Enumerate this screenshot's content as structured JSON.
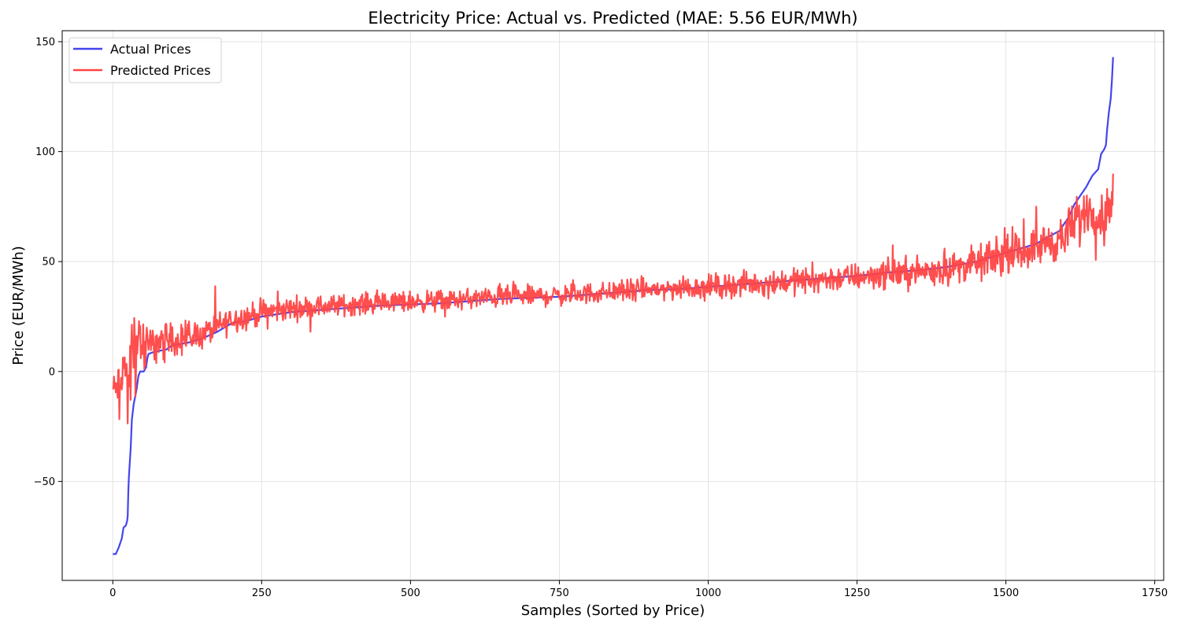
{
  "chart_data": {
    "type": "line",
    "title": "Electricity Price: Actual vs. Predicted (MAE: 5.56 EUR/MWh)",
    "xlabel": "Samples (Sorted by Price)",
    "ylabel": "Price (EUR/MWh)",
    "xlim": [
      -85,
      1765
    ],
    "ylim": [
      -95,
      155
    ],
    "xticks": [
      0,
      250,
      500,
      750,
      1000,
      1250,
      1500,
      1750
    ],
    "yticks": [
      -50,
      0,
      50,
      100,
      150
    ],
    "grid": true,
    "legend_position": "top-left",
    "series": [
      {
        "name": "Actual Prices",
        "color": "#4444ee",
        "shape": "sorted actual price curve",
        "points": [
          [
            0,
            -83
          ],
          [
            5,
            -83
          ],
          [
            10,
            -80
          ],
          [
            15,
            -76
          ],
          [
            18,
            -71
          ],
          [
            22,
            -70
          ],
          [
            24,
            -68
          ],
          [
            25,
            -66
          ],
          [
            26,
            -55
          ],
          [
            27,
            -48
          ],
          [
            30,
            -35
          ],
          [
            32,
            -22
          ],
          [
            35,
            -15
          ],
          [
            40,
            -8
          ],
          [
            43,
            -2
          ],
          [
            46,
            0
          ],
          [
            52,
            0
          ],
          [
            56,
            2
          ],
          [
            58,
            6
          ],
          [
            60,
            8
          ],
          [
            70,
            9
          ],
          [
            90,
            10
          ],
          [
            100,
            12
          ],
          [
            125,
            13
          ],
          [
            150,
            15
          ],
          [
            175,
            18
          ],
          [
            200,
            22
          ],
          [
            225,
            23
          ],
          [
            250,
            25
          ],
          [
            300,
            27
          ],
          [
            350,
            28
          ],
          [
            400,
            29
          ],
          [
            450,
            30
          ],
          [
            500,
            30.5
          ],
          [
            550,
            31
          ],
          [
            600,
            32
          ],
          [
            650,
            33
          ],
          [
            700,
            33.5
          ],
          [
            750,
            34
          ],
          [
            800,
            35
          ],
          [
            850,
            36
          ],
          [
            900,
            37
          ],
          [
            950,
            37.5
          ],
          [
            1000,
            38.5
          ],
          [
            1050,
            39.5
          ],
          [
            1100,
            40.5
          ],
          [
            1150,
            41.5
          ],
          [
            1200,
            42.5
          ],
          [
            1250,
            43.5
          ],
          [
            1300,
            45
          ],
          [
            1350,
            46
          ],
          [
            1400,
            47.5
          ],
          [
            1450,
            50
          ],
          [
            1500,
            54
          ],
          [
            1525,
            56
          ],
          [
            1550,
            58
          ],
          [
            1570,
            61
          ],
          [
            1590,
            64
          ],
          [
            1605,
            70
          ],
          [
            1615,
            76
          ],
          [
            1625,
            80
          ],
          [
            1635,
            84
          ],
          [
            1645,
            89
          ],
          [
            1655,
            92
          ],
          [
            1660,
            99
          ],
          [
            1665,
            101
          ],
          [
            1668,
            103
          ],
          [
            1670,
            110
          ],
          [
            1673,
            118
          ],
          [
            1676,
            124
          ],
          [
            1678,
            132
          ],
          [
            1680,
            143
          ]
        ]
      },
      {
        "name": "Predicted Prices",
        "color": "#ff4444",
        "shape": "noisy prediction around actual curve",
        "noise_band": [
          [
            0,
            6
          ],
          [
            40,
            14
          ],
          [
            60,
            8
          ],
          [
            200,
            5
          ],
          [
            400,
            4
          ],
          [
            800,
            4
          ],
          [
            1200,
            5
          ],
          [
            1400,
            6
          ],
          [
            1550,
            7
          ],
          [
            1600,
            9
          ],
          [
            1680,
            8
          ]
        ],
        "mean_offset": [
          [
            0,
            75
          ],
          [
            20,
            75
          ],
          [
            30,
            35
          ],
          [
            50,
            10
          ],
          [
            60,
            4
          ],
          [
            150,
            2
          ],
          [
            1500,
            -1
          ],
          [
            1570,
            -2
          ],
          [
            1600,
            -6
          ],
          [
            1640,
            -12
          ],
          [
            1670,
            -35
          ],
          [
            1680,
            -61
          ]
        ],
        "range": [
          -34,
          90
        ]
      }
    ]
  }
}
